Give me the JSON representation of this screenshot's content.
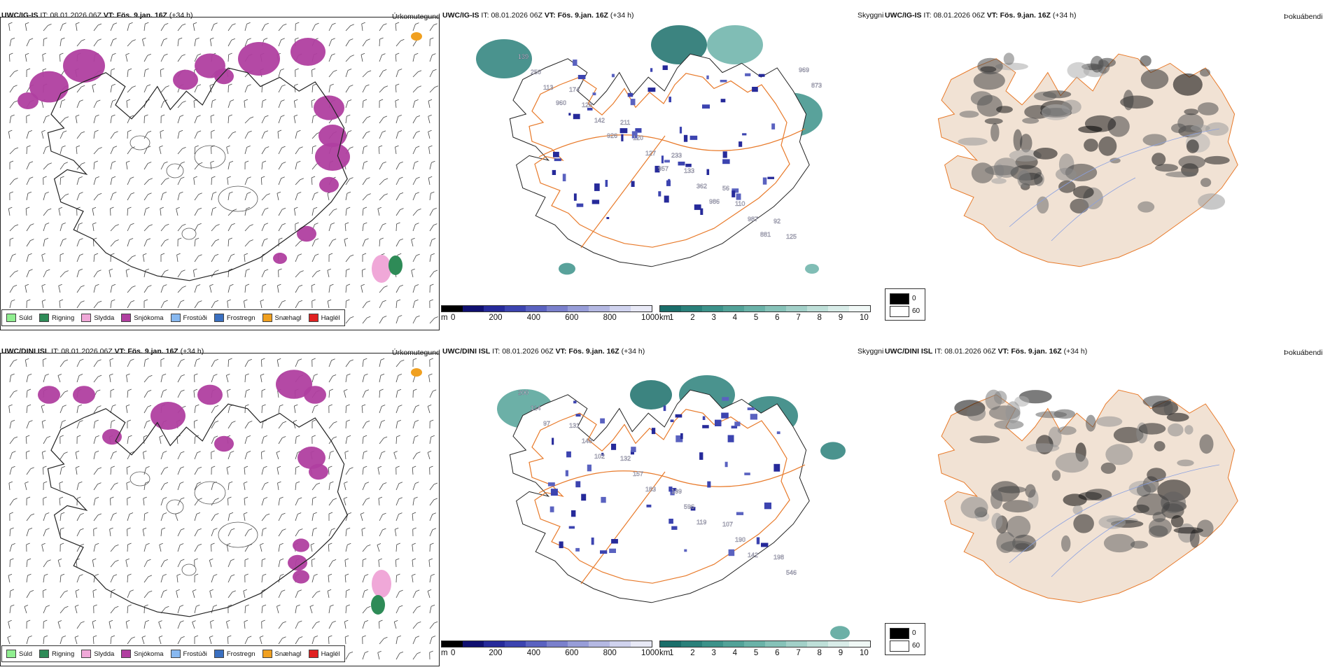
{
  "panels": {
    "top_left": {
      "model": "UWC/IG-IS",
      "it_label": "IT:",
      "it_value": "08.01.2026 06Z",
      "vt_label": "VT:",
      "vt_value": "Fös. 9.jan. 16Z",
      "lead": "(+34 h)",
      "right_label": "Úrkomutegund"
    },
    "top_mid": {
      "model": "UWC/IG-IS",
      "it_label": "IT:",
      "it_value": "08.01.2026 06Z",
      "vt_label": "VT:",
      "vt_value": "Fös. 9.jan. 16Z",
      "lead": "(+34 h)",
      "right_label": "Skyggni"
    },
    "top_right": {
      "model": "UWC/IG-IS",
      "it_label": "IT:",
      "it_value": "08.01.2026 06Z",
      "vt_label": "VT:",
      "vt_value": "Fös. 9.jan. 16Z",
      "lead": "(+34 h)",
      "right_label": "Þokuábendi"
    },
    "bot_left": {
      "model": "UWC/DINI ISL",
      "it_label": "IT:",
      "it_value": "08.01.2026 06Z",
      "vt_label": "VT:",
      "vt_value": "Fös. 9.jan. 16Z",
      "lead": "(+34 h)",
      "right_label": "Úrkomutegund"
    },
    "bot_mid": {
      "model": "UWC/DINI ISL",
      "it_label": "IT:",
      "it_value": "08.01.2026 06Z",
      "vt_label": "VT:",
      "vt_value": "Fös. 9.jan. 16Z",
      "lead": "(+34 h)",
      "right_label": "Skyggni"
    },
    "bot_right": {
      "model": "UWC/DINI ISL",
      "it_label": "IT:",
      "it_value": "08.01.2026 06Z",
      "vt_label": "VT:",
      "vt_value": "Fös. 9.jan. 16Z",
      "lead": "(+34 h)",
      "right_label": "Þokuábendi"
    }
  },
  "precip_legend": [
    {
      "label": "Súld",
      "color": "#90ee90"
    },
    {
      "label": "Rigning",
      "color": "#2e8b57"
    },
    {
      "label": "Slydda",
      "color": "#f0a8d8"
    },
    {
      "label": "Snjókoma",
      "color": "#b03fa0"
    },
    {
      "label": "Frostúði",
      "color": "#87b8f0"
    },
    {
      "label": "Frostregn",
      "color": "#3a6fc0"
    },
    {
      "label": "Snæhagl",
      "color": "#f0a020"
    },
    {
      "label": "Haglél",
      "color": "#e02020"
    }
  ],
  "ceiling_scale": {
    "unit": "m",
    "ticks": [
      "0",
      "200",
      "400",
      "600",
      "800",
      "1000"
    ],
    "colors": [
      "#000000",
      "#101070",
      "#262a9a",
      "#3c44b0",
      "#5a62c0",
      "#7a80cc",
      "#979dd8",
      "#b4b8e2",
      "#d0d3ee",
      "#e8e9f6"
    ]
  },
  "visibility_scale": {
    "unit": "km",
    "ticks": [
      "1",
      "2",
      "3",
      "4",
      "5",
      "6",
      "7",
      "8",
      "9",
      "10"
    ],
    "colors": [
      "#1a6e6a",
      "#2a807a",
      "#3c928a",
      "#52a298",
      "#6ab2a8",
      "#86c2b8",
      "#a2d0c8",
      "#bedfd8",
      "#d8ece8",
      "#f0f8f6"
    ]
  },
  "fog_scale": {
    "max_label": "0",
    "min_label": "60",
    "max_color": "#000000",
    "min_color": "#ffffff"
  },
  "ceiling_labels_top": [
    "139",
    "174",
    "211",
    "233",
    "56",
    "92",
    "250",
    "128",
    "120",
    "133",
    "110",
    "125",
    "113",
    "142",
    "127",
    "362",
    "987",
    "969",
    "960",
    "926",
    "957",
    "986",
    "881",
    "873"
  ],
  "ceiling_labels_bot": [
    "200",
    "131",
    "132",
    "199",
    "107",
    "198",
    "114",
    "148",
    "157",
    "596",
    "190",
    "546",
    "97",
    "102",
    "183",
    "119",
    "142"
  ],
  "colors": {
    "island_fill": "#f1e2d4",
    "roads": "#e87a2a",
    "rivers": "#8aa0e0",
    "coast": "#222222"
  }
}
